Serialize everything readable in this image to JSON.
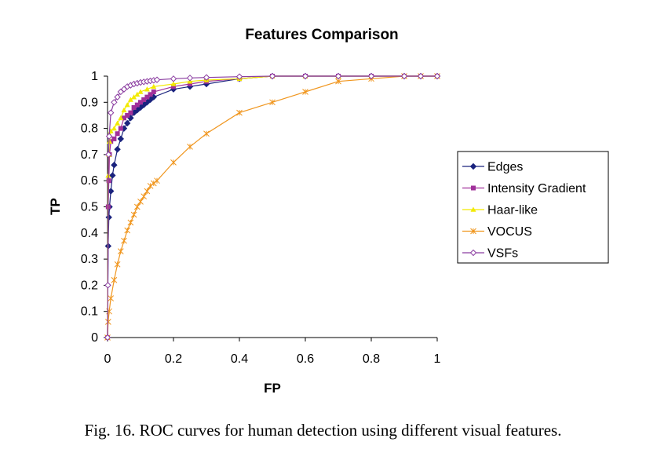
{
  "caption": "Fig. 16. ROC curves for human detection using different visual features.",
  "chart_data": {
    "type": "line",
    "title": "Features Comparison",
    "xlabel": "FP",
    "ylabel": "TP",
    "xlim": [
      0,
      1
    ],
    "ylim": [
      0,
      1
    ],
    "x_ticks": [
      "0",
      "0.2",
      "0.4",
      "0.6",
      "0.8",
      "1"
    ],
    "y_ticks": [
      "0",
      "0.1",
      "0.2",
      "0.3",
      "0.4",
      "0.5",
      "0.6",
      "0.7",
      "0.8",
      "0.9",
      "1"
    ],
    "grid": false,
    "legend_position": "right",
    "series": [
      {
        "name": "Edges",
        "color": "#1a237e",
        "marker": "diamond",
        "x": [
          0,
          0.002,
          0.004,
          0.006,
          0.01,
          0.015,
          0.02,
          0.03,
          0.04,
          0.05,
          0.06,
          0.07,
          0.08,
          0.09,
          0.1,
          0.11,
          0.12,
          0.13,
          0.14,
          0.2,
          0.25,
          0.3,
          0.4,
          0.5,
          0.6,
          0.7,
          0.8,
          0.9,
          0.95,
          1
        ],
        "y": [
          0,
          0.35,
          0.46,
          0.5,
          0.56,
          0.62,
          0.66,
          0.72,
          0.76,
          0.8,
          0.82,
          0.84,
          0.86,
          0.87,
          0.88,
          0.89,
          0.9,
          0.91,
          0.92,
          0.95,
          0.96,
          0.97,
          0.99,
          1,
          1,
          1,
          1,
          1,
          1,
          1
        ]
      },
      {
        "name": "Intensity Gradient",
        "color": "#a0309a",
        "marker": "square",
        "x": [
          0,
          0.002,
          0.004,
          0.006,
          0.01,
          0.02,
          0.03,
          0.04,
          0.05,
          0.06,
          0.07,
          0.08,
          0.09,
          0.1,
          0.11,
          0.12,
          0.13,
          0.14,
          0.2,
          0.25,
          0.3,
          0.4,
          0.5,
          0.6,
          0.7,
          0.8,
          0.9,
          0.95,
          1
        ],
        "y": [
          0,
          0.5,
          0.6,
          0.7,
          0.75,
          0.76,
          0.78,
          0.8,
          0.84,
          0.85,
          0.86,
          0.88,
          0.89,
          0.9,
          0.91,
          0.92,
          0.93,
          0.94,
          0.96,
          0.97,
          0.98,
          0.99,
          1,
          1,
          1,
          1,
          1,
          1,
          1
        ]
      },
      {
        "name": "Haar-like",
        "color": "#f2ea00",
        "marker": "triangle",
        "x": [
          0,
          0.002,
          0.004,
          0.006,
          0.01,
          0.02,
          0.03,
          0.04,
          0.05,
          0.06,
          0.07,
          0.08,
          0.09,
          0.1,
          0.12,
          0.14,
          0.2,
          0.25,
          0.3,
          0.4,
          0.5,
          0.6,
          0.7,
          0.8,
          0.9,
          0.95,
          1
        ],
        "y": [
          0,
          0.62,
          0.7,
          0.75,
          0.79,
          0.8,
          0.82,
          0.84,
          0.87,
          0.89,
          0.91,
          0.92,
          0.93,
          0.94,
          0.95,
          0.96,
          0.97,
          0.98,
          0.985,
          0.99,
          1,
          1,
          1,
          1,
          1,
          1,
          1
        ]
      },
      {
        "name": "VOCUS",
        "color": "#f0961e",
        "marker": "star",
        "x": [
          0,
          0.002,
          0.005,
          0.01,
          0.02,
          0.03,
          0.04,
          0.05,
          0.06,
          0.07,
          0.08,
          0.09,
          0.1,
          0.11,
          0.12,
          0.13,
          0.14,
          0.15,
          0.2,
          0.25,
          0.3,
          0.4,
          0.5,
          0.6,
          0.7,
          0.8,
          0.9,
          0.95,
          1
        ],
        "y": [
          0,
          0.06,
          0.1,
          0.15,
          0.22,
          0.28,
          0.33,
          0.37,
          0.41,
          0.44,
          0.47,
          0.5,
          0.52,
          0.54,
          0.56,
          0.58,
          0.59,
          0.6,
          0.67,
          0.73,
          0.78,
          0.86,
          0.9,
          0.94,
          0.98,
          0.99,
          1,
          1,
          1
        ]
      },
      {
        "name": "VSFs",
        "color": "#8a3ca0",
        "marker": "diamond-open",
        "x": [
          0,
          0.001,
          0.003,
          0.005,
          0.01,
          0.02,
          0.03,
          0.04,
          0.05,
          0.06,
          0.07,
          0.08,
          0.09,
          0.1,
          0.11,
          0.12,
          0.13,
          0.14,
          0.15,
          0.2,
          0.25,
          0.3,
          0.4,
          0.5,
          0.6,
          0.7,
          0.8,
          0.9,
          0.95,
          1
        ],
        "y": [
          0,
          0.2,
          0.7,
          0.77,
          0.86,
          0.9,
          0.92,
          0.94,
          0.95,
          0.96,
          0.965,
          0.97,
          0.973,
          0.976,
          0.978,
          0.98,
          0.982,
          0.984,
          0.986,
          0.99,
          0.993,
          0.995,
          0.998,
          1,
          1,
          1,
          1,
          1,
          1,
          1
        ]
      }
    ]
  }
}
